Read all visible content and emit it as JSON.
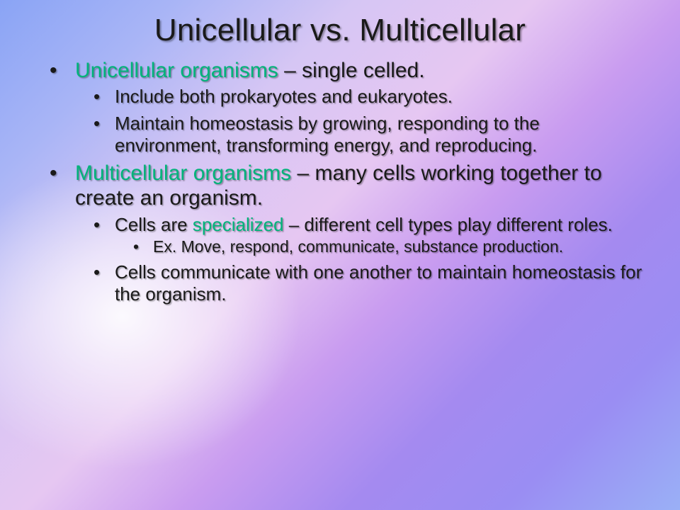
{
  "colors": {
    "text": "#1a1a1a",
    "highlight": "#00b37a",
    "shadow": "rgba(0,0,0,0.35)",
    "bg_stops": [
      "#8aa4f5",
      "#a9b5f6",
      "#d6c6f4",
      "#e6c7f2",
      "#c99cf0",
      "#a48af0",
      "#9a8df3",
      "#9ab0f6"
    ],
    "bg_hotspot": "rgba(255,255,255,0.9)"
  },
  "typography": {
    "title_fontsize": 44,
    "lvl1_fontsize": 30,
    "lvl2_fontsize": 26,
    "lvl3_fontsize": 23,
    "font_family": "Arial"
  },
  "title": "Unicellular vs. Multicellular",
  "bullets": {
    "uni": {
      "term": "Unicellular organisms",
      "rest": " – single celled.",
      "sub1": "Include both prokaryotes and eukaryotes.",
      "sub2": "Maintain homeostasis by growing, responding to the environment, transforming energy, and reproducing."
    },
    "multi": {
      "term": "Multicellular organisms",
      "rest": " – many cells working together to create an organism.",
      "sub1a": "Cells are ",
      "sub1b": "specialized",
      "sub1c": " – different cell types play different roles.",
      "sub1_ex": "Ex. Move, respond, communicate, substance production.",
      "sub2": "Cells communicate with one another to maintain homeostasis for the organism."
    }
  }
}
